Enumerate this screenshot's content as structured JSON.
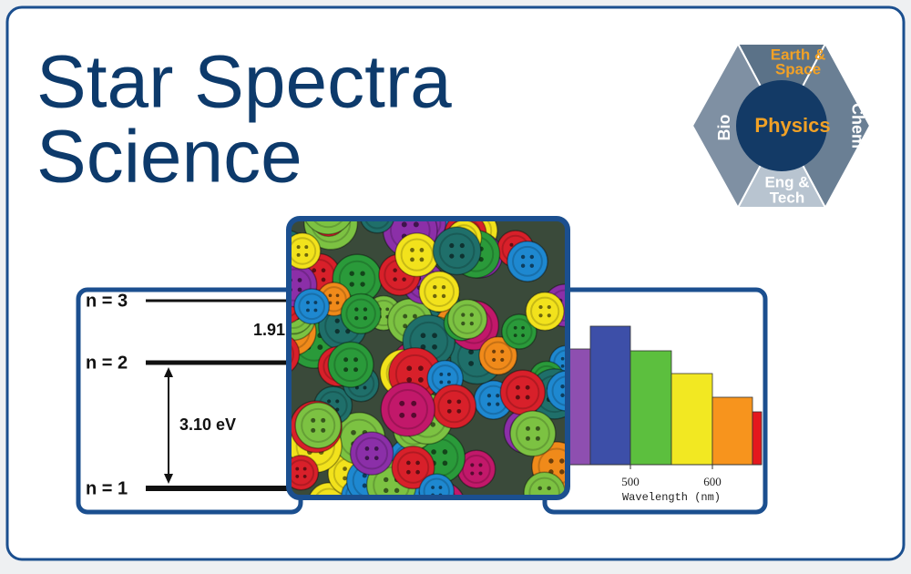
{
  "title": {
    "lines": [
      "Star Spectra",
      "Science"
    ]
  },
  "badge": {
    "top": [
      "Earth &",
      "Space"
    ],
    "center": "Physics",
    "left": "Bio",
    "right": "Chem",
    "bottom": [
      "Eng &",
      "Tech"
    ]
  },
  "energy_diagram": {
    "levels": [
      "n = 3",
      "n = 2",
      "n = 1"
    ],
    "gap_label_upper": "1.91",
    "gap_label_lower": "3.10 eV"
  },
  "spectrum": {
    "ticks": [
      "500",
      "600"
    ],
    "x_label": "Wavelength (nm)"
  }
}
